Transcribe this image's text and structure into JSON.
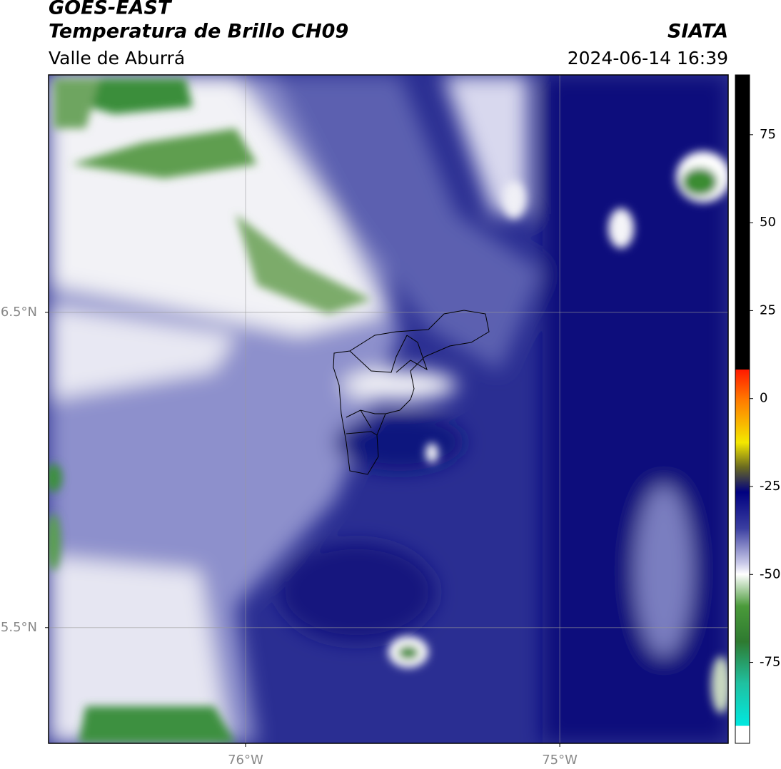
{
  "header": {
    "title": "GOES-EAST",
    "subtitle": "Temperatura de Brillo CH09",
    "region": "Valle de Aburrá",
    "source": "SIATA",
    "datetime": "2024-06-14 16:39"
  },
  "map": {
    "lonlim": [
      -76.627,
      -74.464
    ],
    "latlim": [
      5.133,
      7.253
    ],
    "lonticks": [
      {
        "value": -76,
        "label": "76°W"
      },
      {
        "value": -75,
        "label": "75°W"
      }
    ],
    "latticks": [
      {
        "value": 6.5,
        "label": "6.5°N"
      },
      {
        "value": 5.5,
        "label": "5.5°N"
      }
    ],
    "grid": true
  },
  "colorbar": {
    "range": [
      -98,
      92
    ],
    "ticks": [
      75,
      50,
      25,
      0,
      -25,
      -50,
      -75
    ]
  }
}
